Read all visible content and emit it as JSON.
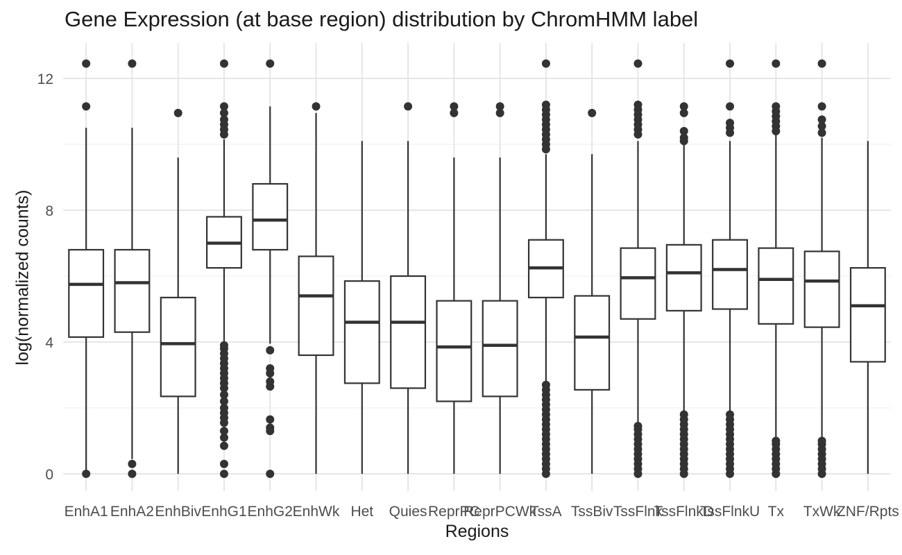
{
  "chart_data": {
    "type": "boxplot",
    "title": "Gene Expression (at base region) distribution by ChromHMM label",
    "xlabel": "Regions",
    "ylabel": "log(normalized counts)",
    "ylim": [
      -0.6,
      12.9
    ],
    "yticks": [
      0,
      4,
      8,
      12
    ],
    "grid": true,
    "theme": "minimal",
    "categories": [
      "EnhA1",
      "EnhA2",
      "EnhBiv",
      "EnhG1",
      "EnhG2",
      "EnhWk",
      "Het",
      "Quies",
      "ReprPC",
      "ReprPCWk",
      "TssA",
      "TssBiv",
      "TssFlnk",
      "TssFlnkD",
      "TssFlnkU",
      "Tx",
      "TxWk",
      "ZNF/Rpts"
    ],
    "boxes": [
      {
        "min": 0.0,
        "q1": 4.15,
        "median": 5.75,
        "q3": 6.8,
        "max": 10.5,
        "outliers": [
          0.0,
          11.15,
          12.45
        ]
      },
      {
        "min": 0.45,
        "q1": 4.3,
        "median": 5.8,
        "q3": 6.8,
        "max": 10.5,
        "outliers": [
          0.0,
          0.3,
          12.45
        ]
      },
      {
        "min": 0.0,
        "q1": 2.35,
        "median": 3.95,
        "q3": 5.35,
        "max": 9.6,
        "outliers": [
          10.95
        ]
      },
      {
        "min": 4.0,
        "q1": 6.25,
        "median": 7.0,
        "q3": 7.8,
        "max": 10.15,
        "outliers": [
          0.0,
          0.3,
          0.85,
          1.1,
          1.3,
          1.55,
          1.7,
          1.85,
          2.0,
          2.2,
          2.4,
          2.6,
          2.75,
          2.9,
          3.05,
          3.2,
          3.35,
          3.5,
          3.65,
          3.8,
          3.9,
          10.3,
          10.45,
          10.6,
          10.75,
          10.95,
          11.15,
          12.45
        ]
      },
      {
        "min": 3.95,
        "q1": 6.8,
        "median": 7.7,
        "q3": 8.8,
        "max": 11.15,
        "outliers": [
          0.0,
          1.3,
          1.4,
          1.65,
          2.65,
          2.8,
          3.05,
          3.2,
          3.75,
          12.45
        ]
      },
      {
        "min": 0.0,
        "q1": 3.6,
        "median": 5.4,
        "q3": 6.6,
        "max": 10.95,
        "outliers": [
          11.15
        ]
      },
      {
        "min": 0.0,
        "q1": 2.75,
        "median": 4.6,
        "q3": 5.85,
        "max": 10.1,
        "outliers": []
      },
      {
        "min": 0.0,
        "q1": 2.6,
        "median": 4.6,
        "q3": 6.0,
        "max": 10.1,
        "outliers": [
          11.15
        ]
      },
      {
        "min": 0.0,
        "q1": 2.2,
        "median": 3.85,
        "q3": 5.25,
        "max": 9.6,
        "outliers": [
          10.95,
          11.15
        ]
      },
      {
        "min": 0.0,
        "q1": 2.35,
        "median": 3.9,
        "q3": 5.25,
        "max": 9.6,
        "outliers": [
          10.95,
          11.15
        ]
      },
      {
        "min": 2.8,
        "q1": 5.35,
        "median": 6.25,
        "q3": 7.1,
        "max": 9.7,
        "outliers": [
          0.0,
          0.15,
          0.3,
          0.45,
          0.6,
          0.75,
          0.9,
          1.05,
          1.2,
          1.35,
          1.5,
          1.65,
          1.8,
          1.95,
          2.1,
          2.25,
          2.4,
          2.55,
          2.7,
          9.85,
          10.0,
          10.15,
          10.3,
          10.45,
          10.6,
          10.75,
          10.9,
          11.05,
          11.2,
          12.45
        ]
      },
      {
        "min": 0.0,
        "q1": 2.55,
        "median": 4.15,
        "q3": 5.4,
        "max": 9.7,
        "outliers": [
          10.95
        ]
      },
      {
        "min": 1.55,
        "q1": 4.7,
        "median": 5.95,
        "q3": 6.85,
        "max": 10.1,
        "outliers": [
          0.0,
          0.15,
          0.3,
          0.45,
          0.6,
          0.75,
          0.9,
          1.05,
          1.2,
          1.35,
          1.45,
          10.3,
          10.45,
          10.6,
          10.75,
          10.9,
          11.05,
          11.2,
          12.45
        ]
      },
      {
        "min": 1.9,
        "q1": 4.95,
        "median": 6.1,
        "q3": 6.95,
        "max": 10.0,
        "outliers": [
          0.0,
          0.15,
          0.3,
          0.45,
          0.6,
          0.75,
          0.9,
          1.05,
          1.2,
          1.35,
          1.5,
          1.65,
          1.8,
          10.1,
          10.2,
          10.4,
          10.95,
          11.15
        ]
      },
      {
        "min": 1.9,
        "q1": 5.0,
        "median": 6.2,
        "q3": 7.1,
        "max": 10.1,
        "outliers": [
          0.0,
          0.15,
          0.3,
          0.45,
          0.6,
          0.75,
          0.9,
          1.05,
          1.2,
          1.35,
          1.5,
          1.65,
          1.8,
          10.35,
          10.5,
          10.65,
          11.15,
          12.45
        ]
      },
      {
        "min": 1.1,
        "q1": 4.55,
        "median": 5.9,
        "q3": 6.85,
        "max": 10.3,
        "outliers": [
          0.0,
          0.15,
          0.3,
          0.45,
          0.6,
          0.75,
          0.9,
          1.0,
          10.4,
          10.55,
          10.7,
          10.85,
          11.0,
          11.15,
          12.45
        ]
      },
      {
        "min": 1.1,
        "q1": 4.45,
        "median": 5.85,
        "q3": 6.75,
        "max": 10.2,
        "outliers": [
          0.0,
          0.15,
          0.3,
          0.45,
          0.6,
          0.75,
          0.9,
          1.0,
          10.35,
          10.55,
          10.75,
          11.15,
          12.45
        ]
      },
      {
        "min": 0.0,
        "q1": 3.4,
        "median": 5.1,
        "q3": 6.25,
        "max": 10.1,
        "outliers": []
      }
    ]
  }
}
